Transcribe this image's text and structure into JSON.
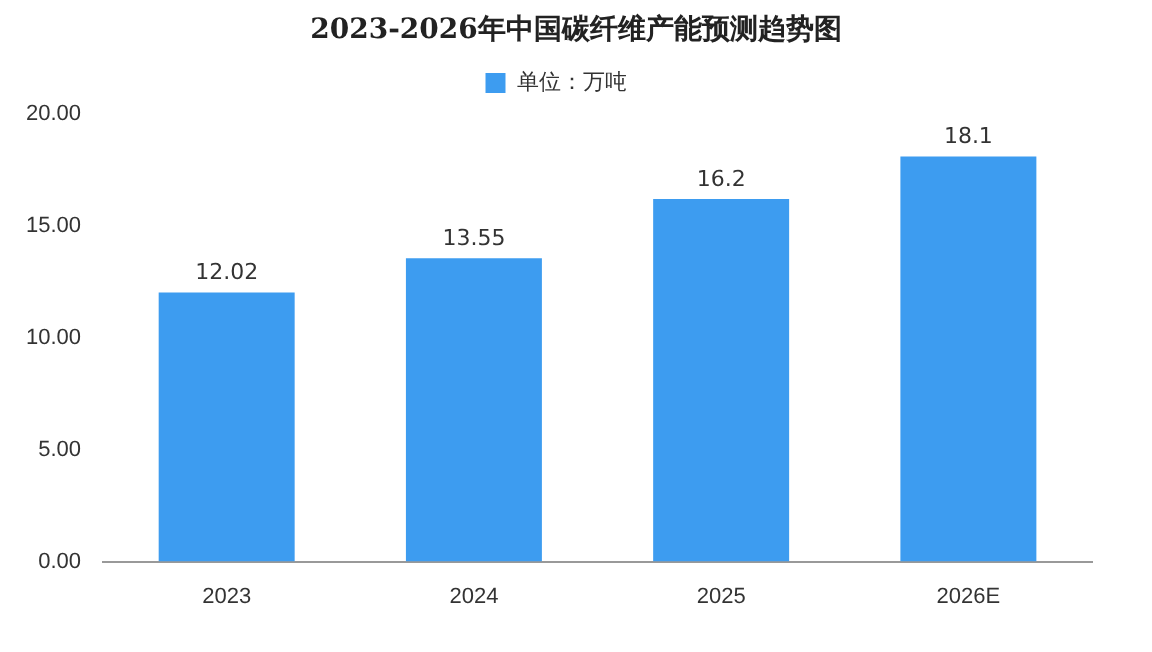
{
  "chart_data": {
    "type": "bar",
    "title": "2023-2026年中国碳纤维产能预测趋势图",
    "categories": [
      "2023",
      "2024",
      "2025",
      "2026E"
    ],
    "series": [
      {
        "name": "单位：万吨",
        "color": "#3d9cf0",
        "values": [
          12.02,
          13.55,
          16.2,
          18.1
        ]
      }
    ],
    "ylim": [
      0,
      20
    ],
    "yticks": [
      {
        "value": 0,
        "label": "0.00"
      },
      {
        "value": 5,
        "label": "5.00"
      },
      {
        "value": 10,
        "label": "10.00"
      },
      {
        "value": 15,
        "label": "15.00"
      },
      {
        "value": 20,
        "label": "20.00"
      }
    ],
    "grid": false,
    "legend": "top",
    "data_labels": true
  }
}
